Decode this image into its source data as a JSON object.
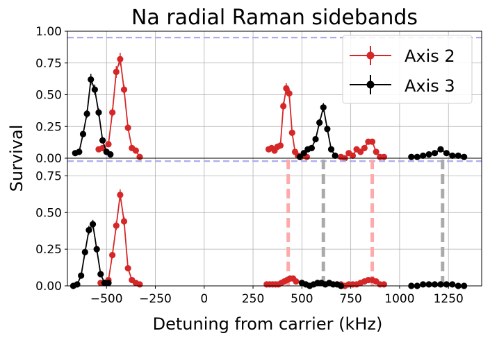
{
  "chart_data": [
    {
      "type": "line",
      "panel": "top",
      "title": "Na radial Raman sidebands",
      "xlim": [
        -700,
        1420
      ],
      "ylim": [
        0,
        1.0
      ],
      "yticks": [
        0,
        0.25,
        0.5,
        0.75,
        1.0
      ],
      "ytick_labels": [
        "0.00",
        "0.25",
        "0.50",
        "0.75",
        "1.00"
      ],
      "grid": true,
      "legend_position": "top-right",
      "hline_dashed": {
        "y": 0.95,
        "color": "#aaaaee"
      },
      "series": [
        {
          "name": "Axis 2",
          "color": "#d62728",
          "segments": [
            {
              "x": [
                -540,
                -520,
                -490,
                -470,
                -450,
                -430,
                -410,
                -390,
                -370,
                -350,
                -330
              ],
              "y": [
                0.07,
                0.08,
                0.11,
                0.36,
                0.68,
                0.78,
                0.54,
                0.24,
                0.08,
                0.06,
                0.01
              ]
            },
            {
              "x": [
                330,
                345,
                360,
                375,
                390,
                405,
                420,
                435,
                450,
                465,
                480,
                495,
                510,
                525
              ],
              "y": [
                0.07,
                0.08,
                0.06,
                0.09,
                0.1,
                0.41,
                0.55,
                0.51,
                0.2,
                0.05,
                0.02,
                0.01,
                0.03,
                0.01
              ]
            },
            {
              "x": [
                700,
                720,
                740,
                760,
                780,
                800,
                820,
                840,
                860,
                880,
                900,
                920
              ],
              "y": [
                0.01,
                0.0,
                0.04,
                0.02,
                0.07,
                0.05,
                0.08,
                0.13,
                0.13,
                0.05,
                0.01,
                0.01
              ]
            }
          ]
        },
        {
          "name": "Axis 3",
          "color": "#000000",
          "segments": [
            {
              "x": [
                -660,
                -640,
                -620,
                -600,
                -580,
                -560,
                -540,
                -520,
                -500,
                -480
              ],
              "y": [
                0.04,
                0.05,
                0.19,
                0.35,
                0.62,
                0.54,
                0.36,
                0.14,
                0.05,
                0.03
              ]
            },
            {
              "x": [
                490,
                510,
                530,
                550,
                570,
                590,
                610,
                630,
                650,
                670
              ],
              "y": [
                0.01,
                0.04,
                0.07,
                0.08,
                0.15,
                0.28,
                0.4,
                0.23,
                0.07,
                0.02
              ]
            },
            {
              "x": [
                1060,
                1090,
                1120,
                1150,
                1180,
                1210,
                1240,
                1270,
                1300,
                1330
              ],
              "y": [
                0.01,
                0.01,
                0.02,
                0.03,
                0.04,
                0.07,
                0.04,
                0.02,
                0.02,
                0.01
              ]
            }
          ]
        }
      ]
    },
    {
      "type": "line",
      "panel": "bottom",
      "xlabel": "Detuning from carrier (kHz)",
      "ylabel": "Survival",
      "xlim": [
        -700,
        1420
      ],
      "ylim": [
        0,
        0.87
      ],
      "xticks": [
        -500,
        -250,
        0,
        250,
        500,
        750,
        1000,
        1250
      ],
      "xtick_labels": [
        "−500",
        "−250",
        "0",
        "250",
        "500",
        "750",
        "1000",
        "1250"
      ],
      "yticks": [
        0,
        0.25,
        0.5,
        0.75
      ],
      "ytick_labels": [
        "0.00",
        "0.25",
        "0.50",
        "0.75"
      ],
      "grid": true,
      "hline_dashed": {
        "y": 0.85,
        "color": "#aaaaee"
      },
      "vlines_dashed": [
        {
          "x": 430,
          "color": "#ffaaaa"
        },
        {
          "x": 860,
          "color": "#ffaaaa"
        },
        {
          "x": 610,
          "color": "#aaaaaa"
        },
        {
          "x": 1220,
          "color": "#aaaaaa"
        }
      ],
      "series": [
        {
          "name": "Axis 2",
          "color": "#d62728",
          "segments": [
            {
              "x": [
                -530,
                -510,
                -490,
                -470,
                -450,
                -430,
                -410,
                -390,
                -370,
                -350,
                -330
              ],
              "y": [
                0.02,
                0.02,
                0.04,
                0.21,
                0.41,
                0.62,
                0.44,
                0.12,
                0.04,
                0.02,
                0.01
              ]
            },
            {
              "x": [
                320,
                335,
                350,
                365,
                380,
                395,
                410,
                425,
                440,
                455,
                470
              ],
              "y": [
                0.01,
                0.01,
                0.01,
                0.01,
                0.01,
                0.02,
                0.03,
                0.04,
                0.05,
                0.05,
                0.03
              ]
            },
            {
              "x": [
                700,
                720,
                740,
                760,
                780,
                800,
                820,
                840,
                860,
                880,
                900,
                920
              ],
              "y": [
                0.01,
                0.0,
                0.01,
                0.01,
                0.01,
                0.02,
                0.03,
                0.04,
                0.04,
                0.03,
                0.01,
                0.01
              ]
            }
          ]
        },
        {
          "name": "Axis 3",
          "color": "#000000",
          "segments": [
            {
              "x": [
                -670,
                -650,
                -630,
                -610,
                -590,
                -570,
                -550,
                -530,
                -510,
                -490
              ],
              "y": [
                0.0,
                0.01,
                0.07,
                0.23,
                0.38,
                0.42,
                0.25,
                0.08,
                0.02,
                0.02
              ]
            },
            {
              "x": [
                500,
                520,
                540,
                560,
                580,
                600,
                620,
                640,
                660,
                680,
                700
              ],
              "y": [
                0.02,
                0.01,
                0.0,
                0.01,
                0.02,
                0.02,
                0.01,
                0.02,
                0.01,
                0.01,
                0.0
              ]
            },
            {
              "x": [
                1060,
                1090,
                1120,
                1150,
                1180,
                1210,
                1240,
                1270,
                1300,
                1330
              ],
              "y": [
                0.0,
                0.0,
                0.01,
                0.01,
                0.01,
                0.01,
                0.01,
                0.01,
                0.0,
                0.0
              ]
            }
          ]
        }
      ]
    }
  ],
  "title": "Na radial Raman sidebands",
  "xlabel": "Detuning from carrier (kHz)",
  "ylabel": "Survival",
  "legend": [
    {
      "label": "Axis 2",
      "color": "#d62728"
    },
    {
      "label": "Axis 3",
      "color": "#000000"
    }
  ]
}
